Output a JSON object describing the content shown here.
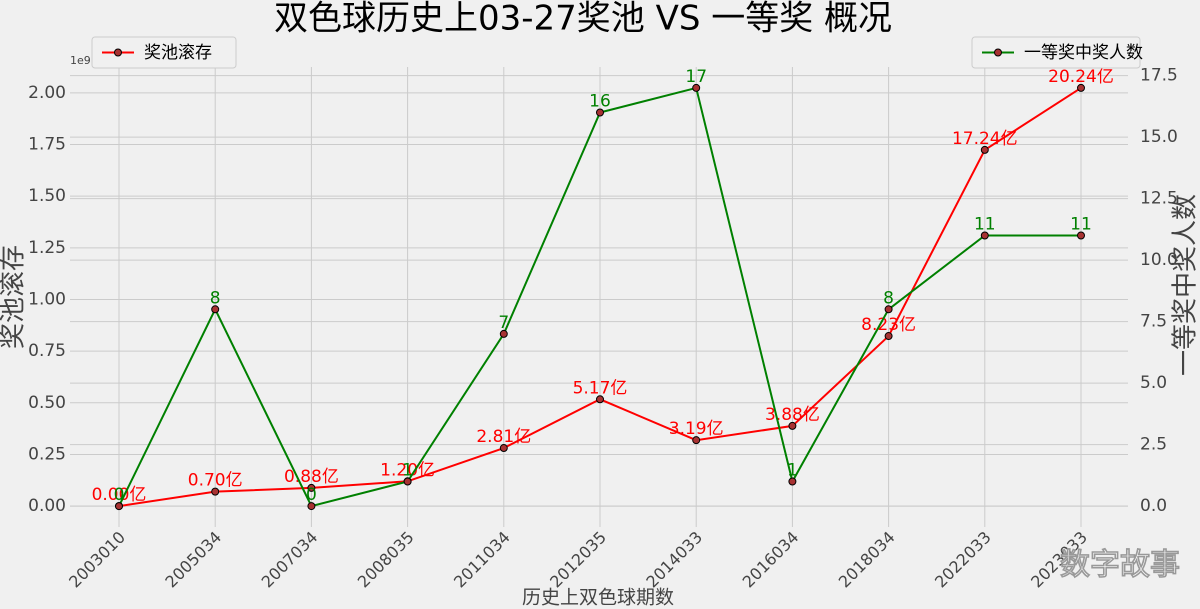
{
  "chart_data": {
    "type": "line",
    "title": "双色球历史上03-27奖池 VS 一等奖 概况",
    "xlabel": "历史上双色球期数",
    "ylabel": "奖池滚存",
    "y2label": "一等奖中奖人数",
    "y_offset_label": "1e9",
    "categories": [
      "2003010",
      "2005034",
      "2007034",
      "2008035",
      "2011034",
      "2012035",
      "2014033",
      "2016034",
      "2018034",
      "2022033",
      "2023033"
    ],
    "series": [
      {
        "name": "奖池滚存",
        "color": "#ff0000",
        "marker_color": "#a83232",
        "values": [
          0,
          70000000,
          88000000,
          120000000,
          281000000,
          517000000,
          319000000,
          388000000,
          823000000,
          1724000000,
          2024000000
        ],
        "value_labels": [
          "0.00亿",
          "0.70亿",
          "0.88亿",
          "1.20亿",
          "2.81亿",
          "5.17亿",
          "3.19亿",
          "3.88亿",
          "8.23亿",
          "17.24亿",
          "20.24亿"
        ]
      },
      {
        "name": "一等奖中奖人数",
        "color": "#008000",
        "marker_color": "#a83232",
        "axis": "y2",
        "values": [
          0,
          8,
          0,
          1,
          7,
          16,
          17,
          1,
          8,
          11,
          11
        ]
      }
    ],
    "ylim": [
      -101200000,
      2125200000
    ],
    "yticks": [
      {
        "value": 0,
        "label": "0.00"
      },
      {
        "value": 250000000,
        "label": "0.25"
      },
      {
        "value": 500000000,
        "label": "0.50"
      },
      {
        "value": 750000000,
        "label": "0.75"
      },
      {
        "value": 1000000000,
        "label": "1.00"
      },
      {
        "value": 1250000000,
        "label": "1.25"
      },
      {
        "value": 1500000000,
        "label": "1.50"
      },
      {
        "value": 1750000000,
        "label": "1.75"
      },
      {
        "value": 2000000000,
        "label": "2.00"
      }
    ],
    "y2lim": [
      -0.85,
      17.85
    ],
    "y2ticks": [
      {
        "value": 0,
        "label": "0.0"
      },
      2.5,
      {
        "value": 5,
        "label": "5.0"
      },
      7.5,
      {
        "value": 10,
        "label": "10.0"
      },
      12.5,
      {
        "value": 15,
        "label": "15.0"
      },
      17.5
    ],
    "grid": true,
    "legend_positions": [
      "upper left",
      "upper right"
    ],
    "watermark": "数字故事"
  }
}
